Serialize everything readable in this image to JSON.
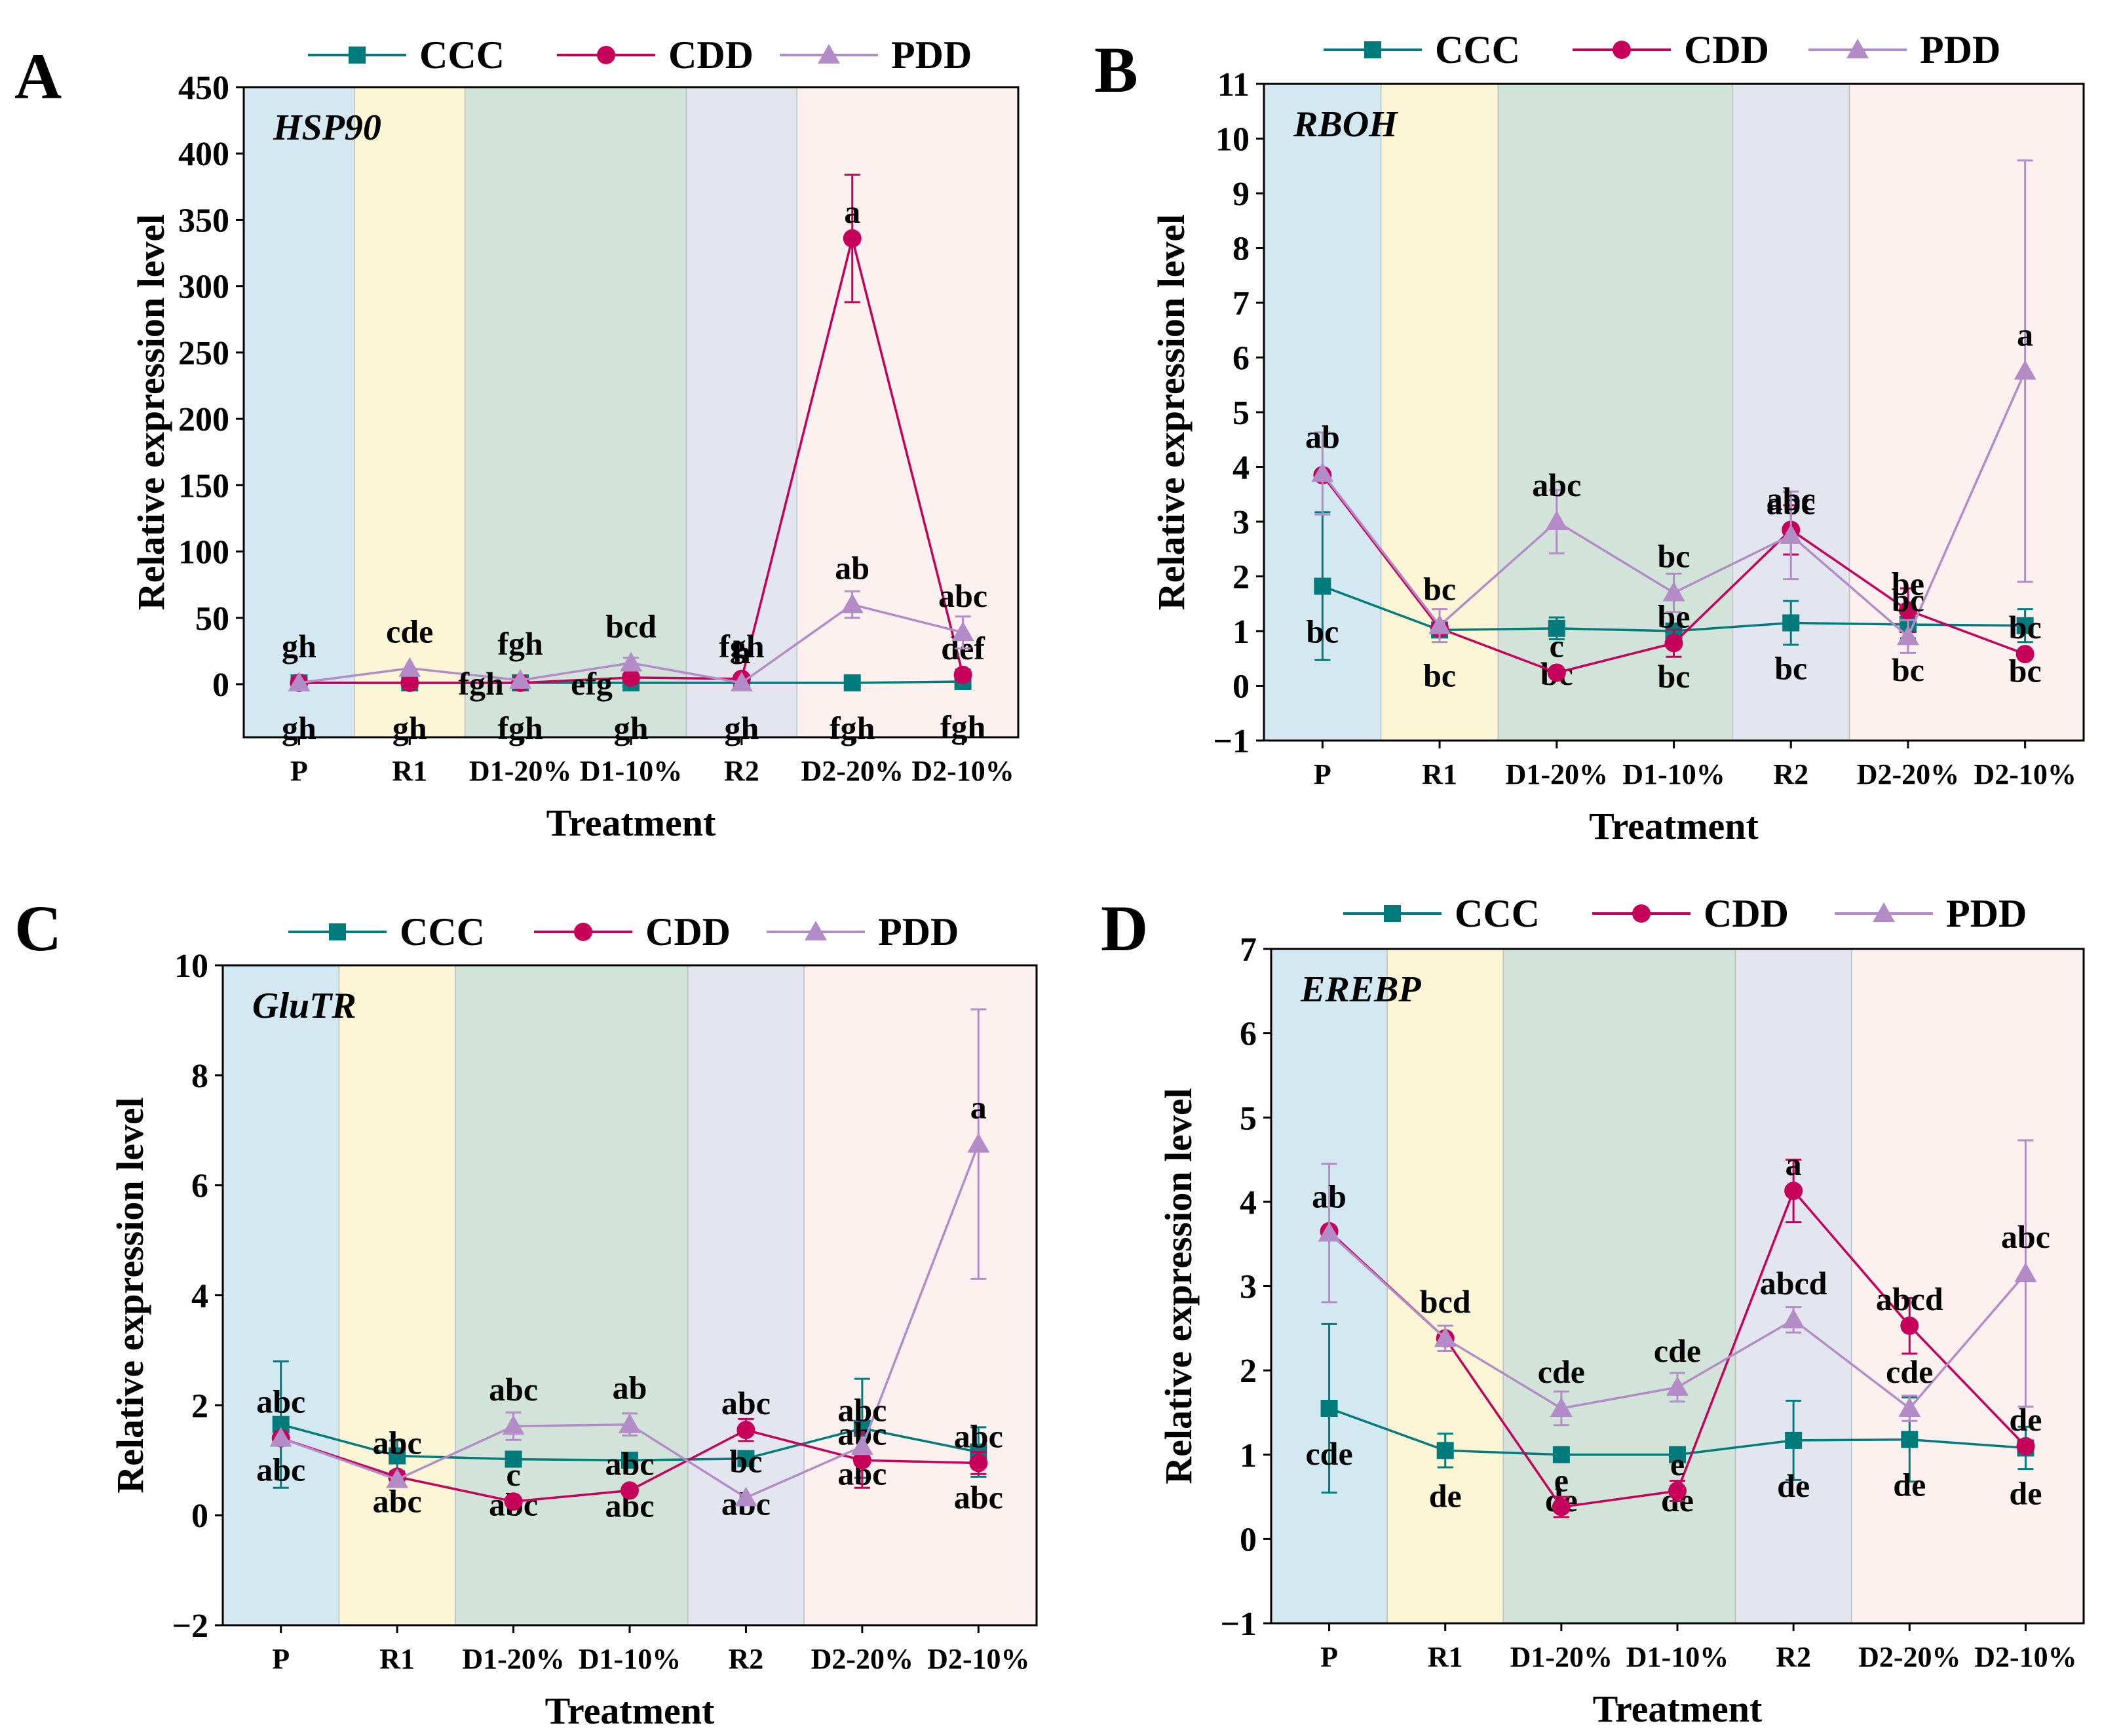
{
  "colors": {
    "CCC": "#007b7b",
    "CDD": "#c6005a",
    "PDD": "#b38cc7",
    "bands": [
      "#d4e8f1",
      "#fdf6d6",
      "#d2e4d9",
      "#e4e6ef",
      "#fdf1ef"
    ]
  },
  "bands": [
    "P",
    "R1",
    "D1",
    "R2",
    "D2"
  ],
  "legend": [
    "CCC",
    "CDD",
    "PDD"
  ],
  "chart_data": [
    {
      "panel": "A",
      "gene": "HSP90",
      "type": "line",
      "title": "",
      "xlabel": "Treatment",
      "ylabel": "Relative expression level",
      "categories": [
        "P",
        "R1",
        "D1-20%",
        "D1-10%",
        "R2",
        "D2-20%",
        "D2-10%"
      ],
      "ylim": [
        -40,
        450
      ],
      "yticks": [
        0,
        50,
        100,
        150,
        200,
        250,
        300,
        350,
        400,
        450
      ],
      "series": [
        {
          "name": "CCC",
          "values": [
            1,
            1,
            1,
            1,
            1,
            1,
            2
          ],
          "err": [
            0,
            0,
            0,
            0,
            0,
            0,
            0
          ],
          "letters": [
            "gh",
            "gh",
            "fgh",
            "gh",
            "gh",
            "fgh",
            "fgh"
          ]
        },
        {
          "name": "CDD",
          "values": [
            1,
            1,
            1,
            5,
            4,
            336,
            7
          ],
          "err": [
            0,
            0,
            0,
            0,
            0,
            48,
            4
          ],
          "letters": [
            "",
            "",
            "",
            "",
            "h",
            "a",
            "def"
          ]
        },
        {
          "name": "PDD",
          "values": [
            1,
            12,
            3,
            16,
            1,
            60,
            39
          ],
          "err": [
            0,
            0,
            0,
            4,
            0,
            10,
            12
          ],
          "letters": [
            "gh",
            "cde",
            "fgh",
            "bcd",
            "fgh",
            "ab",
            "abc"
          ]
        }
      ],
      "extra_labels": [
        "fgh",
        "efg"
      ]
    },
    {
      "panel": "B",
      "gene": "RBOH",
      "type": "line",
      "title": "",
      "xlabel": "Treatment",
      "ylabel": "Relative expression level",
      "categories": [
        "P",
        "R1",
        "D1-20%",
        "D1-10%",
        "R2",
        "D2-20%",
        "D2-10%"
      ],
      "ylim": [
        -1,
        11
      ],
      "yticks": [
        -1,
        0,
        1,
        2,
        3,
        4,
        5,
        6,
        7,
        8,
        9,
        10,
        11
      ],
      "series": [
        {
          "name": "CCC",
          "values": [
            1.82,
            1.02,
            1.05,
            1.0,
            1.15,
            1.12,
            1.1
          ],
          "err": [
            1.35,
            0.12,
            0.2,
            0.1,
            0.4,
            0.25,
            0.3
          ],
          "letters": [
            "bc",
            "bc",
            "bc",
            "bc",
            "bc",
            "bc",
            "bc"
          ]
        },
        {
          "name": "CDD",
          "values": [
            3.85,
            1.05,
            0.24,
            0.78,
            2.85,
            1.38,
            0.58
          ],
          "err": [
            0,
            0,
            0,
            0.25,
            0.45,
            0.4,
            0
          ],
          "letters": [
            "",
            "",
            "c",
            "be",
            "abc",
            "be",
            "bc"
          ]
        },
        {
          "name": "PDD",
          "values": [
            3.88,
            1.1,
            3.0,
            1.7,
            2.75,
            0.9,
            5.75
          ],
          "err": [
            0.75,
            0.3,
            0.58,
            0.35,
            0.8,
            0.3,
            3.85
          ],
          "letters": [
            "ab",
            "bc",
            "abc",
            "bc",
            "abc",
            "bc",
            "a"
          ]
        }
      ]
    },
    {
      "panel": "C",
      "gene": "GluTR",
      "type": "line",
      "title": "",
      "xlabel": "Treatment",
      "ylabel": "Relative expression level",
      "categories": [
        "P",
        "R1",
        "D1-20%",
        "D1-10%",
        "R2",
        "D2-20%",
        "D2-10%"
      ],
      "ylim": [
        -2,
        10
      ],
      "yticks": [
        -2,
        0,
        2,
        4,
        6,
        8,
        10
      ],
      "series": [
        {
          "name": "CCC",
          "values": [
            1.65,
            1.08,
            1.02,
            1.0,
            1.03,
            1.58,
            1.15
          ],
          "err": [
            1.15,
            0.28,
            0,
            0,
            0,
            0.9,
            0.45
          ],
          "letters": [
            "abc",
            "abc",
            "abc",
            "abc",
            "abc",
            "abc",
            "abc"
          ]
        },
        {
          "name": "CDD",
          "values": [
            1.4,
            0.7,
            0.25,
            0.45,
            1.55,
            1.0,
            0.95
          ],
          "err": [
            0,
            0,
            0,
            0,
            0.2,
            0.5,
            0.2
          ],
          "letters": [
            "",
            "",
            "c",
            "abc",
            "abc",
            "abc",
            "abc"
          ]
        },
        {
          "name": "PDD",
          "values": [
            1.4,
            0.65,
            1.62,
            1.65,
            0.32,
            1.25,
            6.75
          ],
          "err": [
            0,
            0,
            0.25,
            0.2,
            0,
            0,
            2.45
          ],
          "letters": [
            "abc",
            "abc",
            "abc",
            "ab",
            "bc",
            "abc",
            "a"
          ]
        }
      ]
    },
    {
      "panel": "D",
      "gene": "EREBP",
      "type": "line",
      "title": "",
      "xlabel": "Treatment",
      "ylabel": "Relative expression level",
      "categories": [
        "P",
        "R1",
        "D1-20%",
        "D1-10%",
        "R2",
        "D2-20%",
        "D2-10%"
      ],
      "ylim": [
        -1,
        7
      ],
      "yticks": [
        -1,
        0,
        1,
        2,
        3,
        4,
        5,
        6,
        7
      ],
      "series": [
        {
          "name": "CCC",
          "values": [
            1.55,
            1.05,
            1.0,
            1.0,
            1.17,
            1.18,
            1.08
          ],
          "err": [
            1.0,
            0.2,
            0,
            0,
            0.47,
            0.5,
            0.25
          ],
          "letters": [
            "cde",
            "de",
            "de",
            "de",
            "de",
            "de",
            "de"
          ]
        },
        {
          "name": "CDD",
          "values": [
            3.65,
            2.38,
            0.38,
            0.57,
            4.13,
            2.53,
            1.1
          ],
          "err": [
            0,
            0,
            0.12,
            0.12,
            0.37,
            0.33,
            0
          ],
          "letters": [
            "",
            "",
            "e",
            "e",
            "a",
            "abcd",
            "de"
          ]
        },
        {
          "name": "PDD",
          "values": [
            3.63,
            2.38,
            1.55,
            1.8,
            2.6,
            1.55,
            3.15
          ],
          "err": [
            0.82,
            0.15,
            0.2,
            0.17,
            0.15,
            0.15,
            1.58
          ],
          "letters": [
            "ab",
            "bcd",
            "cde",
            "cde",
            "abcd",
            "cde",
            "abc"
          ]
        }
      ]
    }
  ]
}
